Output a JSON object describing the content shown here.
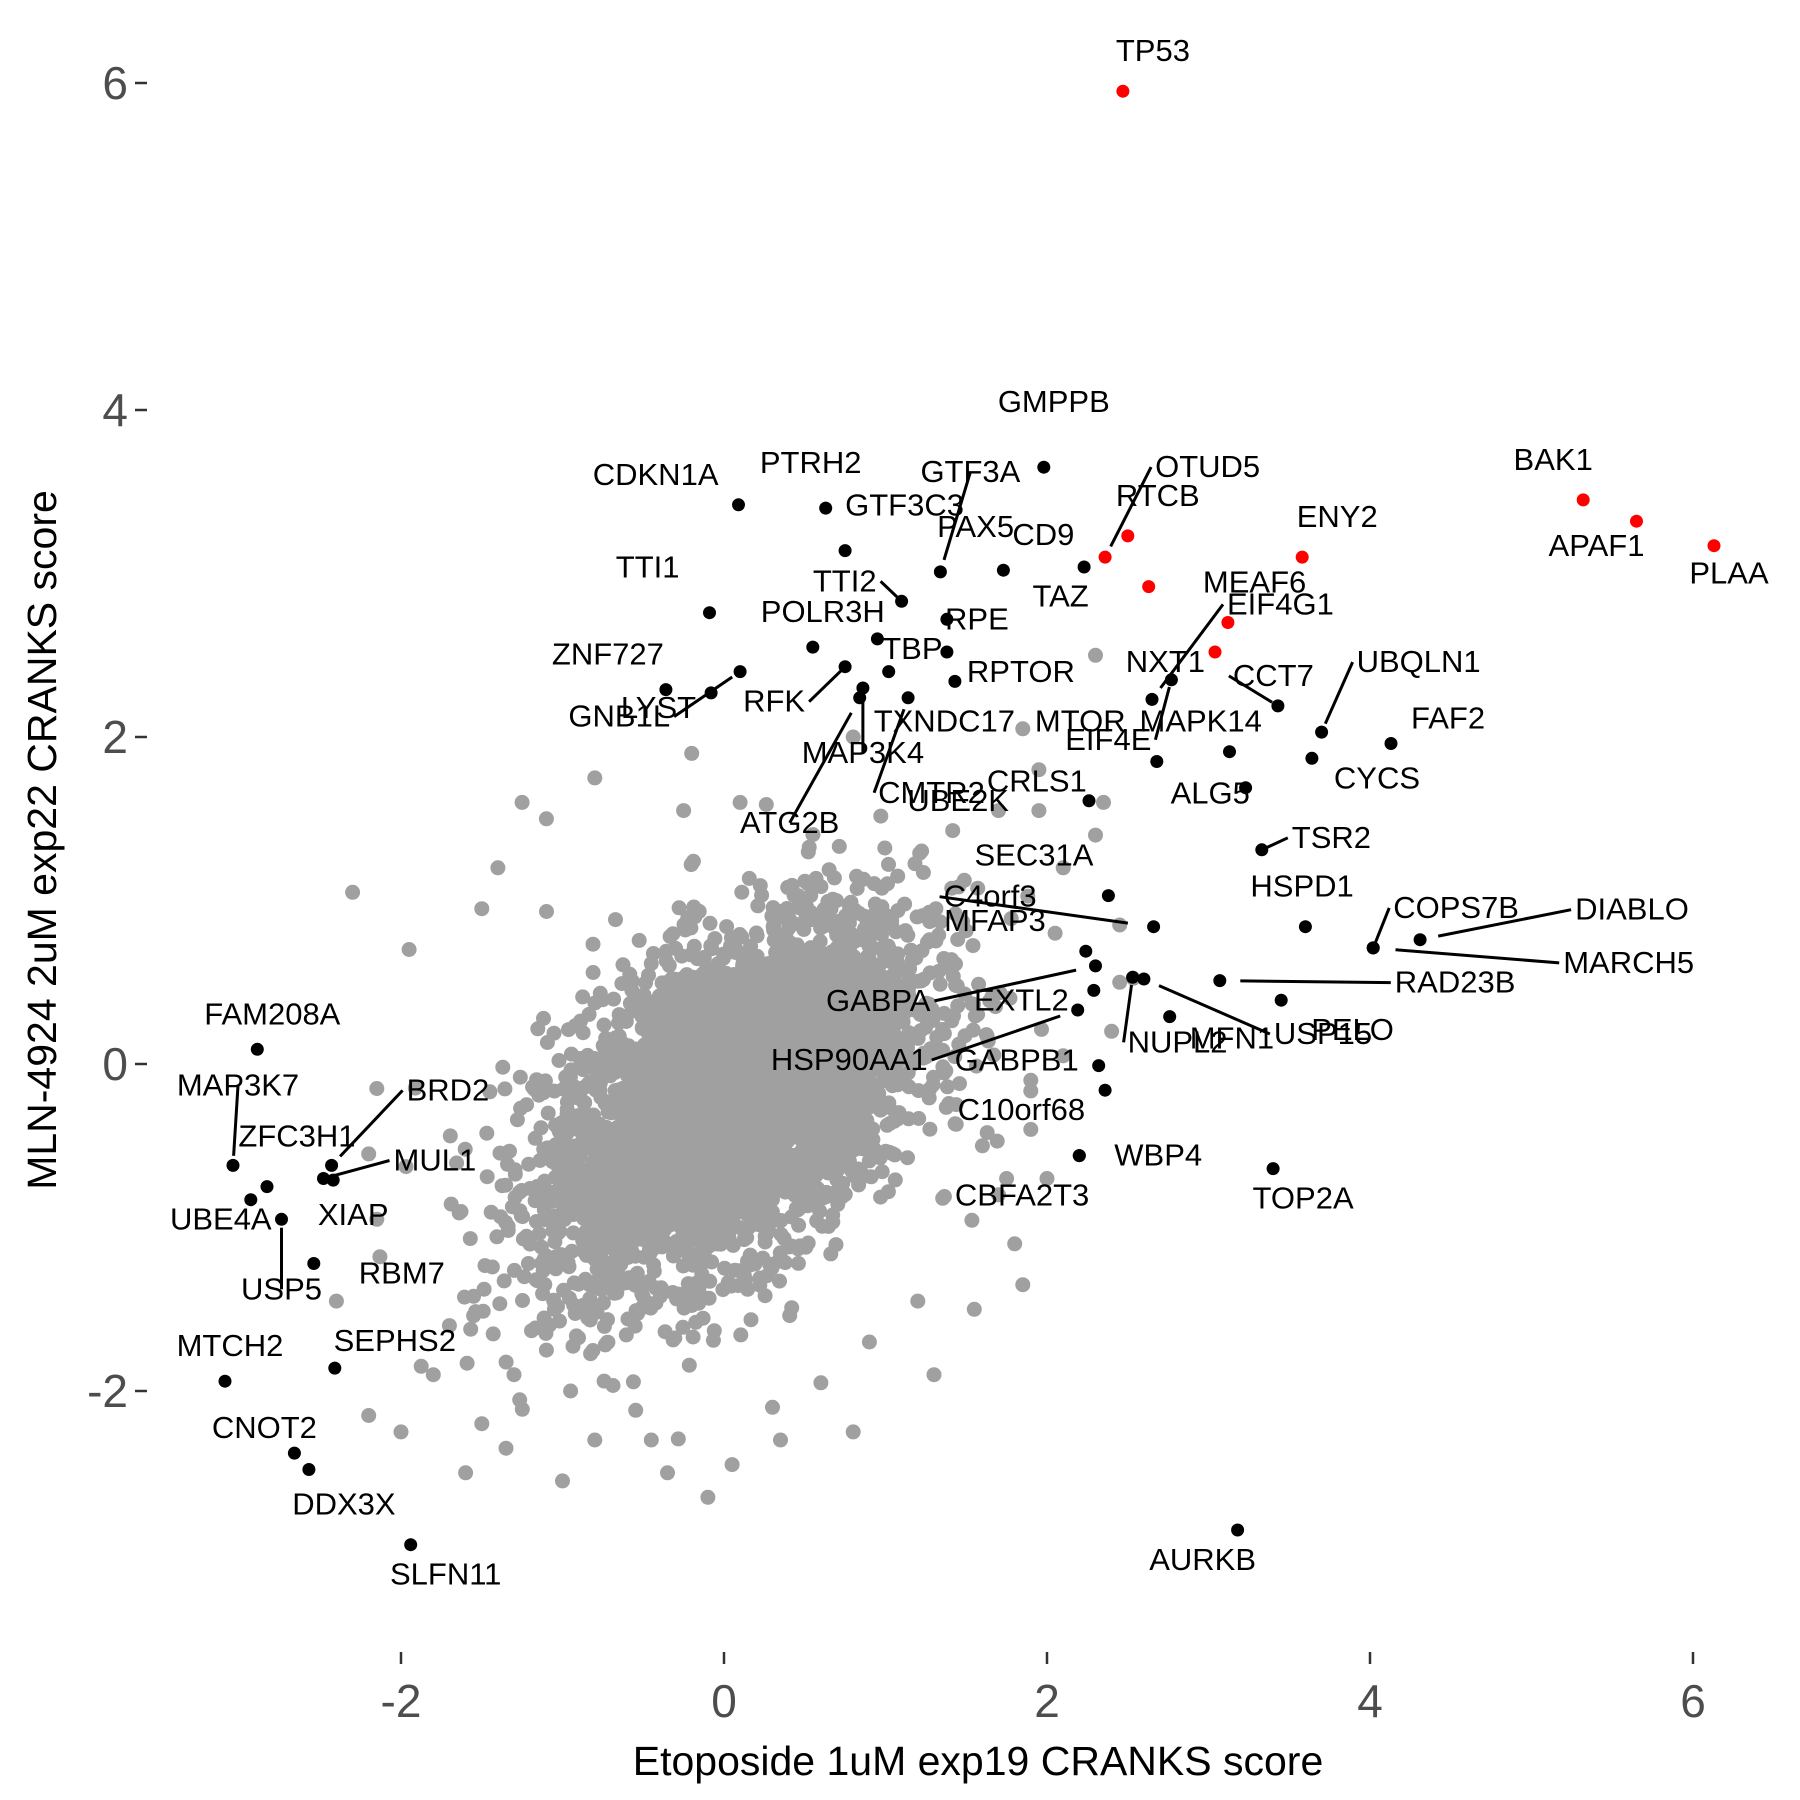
{
  "chart_data": {
    "type": "scatter",
    "xlabel": "Etoposide 1uM exp19 CRANKS score",
    "ylabel": "MLN-4924 2uM exp22 CRANKS score",
    "xlim": [
      -3.25,
      6.55
    ],
    "ylim": [
      -3.6,
      6.5
    ],
    "x_ticks": [
      -2,
      0,
      2,
      4,
      6
    ],
    "y_ticks": [
      -2,
      0,
      2,
      4,
      6
    ],
    "x_tick_labels": [
      "-2",
      "0",
      "2",
      "4",
      "6"
    ],
    "y_tick_labels": [
      "-2",
      "0",
      "2",
      "4",
      "6"
    ],
    "grid": false,
    "colors": {
      "background": "#ffffff",
      "cloud": "#a0a0a0",
      "highlight": "#ff0000",
      "labeled": "#000000"
    },
    "background_points": {
      "description_note": "dense cloud of unlabeled genes centered near the origin, correlation ~0.5",
      "count": 4200,
      "outliers": [
        [
          -2.3,
          1.05
        ],
        [
          -1.95,
          0.7
        ],
        [
          -1.4,
          1.2
        ],
        [
          -1.1,
          1.5
        ],
        [
          -0.8,
          1.75
        ],
        [
          -1.7,
          -1.6
        ],
        [
          -1.5,
          -2.2
        ],
        [
          -1.0,
          -2.55
        ],
        [
          -0.1,
          -2.65
        ],
        [
          0.05,
          -2.45
        ],
        [
          -0.45,
          -2.3
        ],
        [
          0.8,
          -2.25
        ],
        [
          0.3,
          -2.1
        ],
        [
          -0.8,
          -2.3
        ],
        [
          2.35,
          1.6
        ],
        [
          2.05,
          0.8
        ],
        [
          1.9,
          -0.4
        ],
        [
          1.7,
          -0.8
        ],
        [
          1.8,
          -1.1
        ],
        [
          1.85,
          -1.35
        ],
        [
          1.2,
          -1.45
        ],
        [
          0.9,
          -1.7
        ],
        [
          1.3,
          -1.9
        ],
        [
          1.6,
          -0.5
        ],
        [
          1.7,
          1.55
        ],
        [
          1.85,
          2.05
        ],
        [
          2.3,
          2.5
        ],
        [
          1.9,
          -0.1
        ],
        [
          -2.2,
          -2.15
        ],
        [
          -2.0,
          -2.25
        ],
        [
          -1.6,
          -2.5
        ],
        [
          -2.4,
          -1.45
        ],
        [
          -2.2,
          -0.55
        ],
        [
          -2.15,
          -0.15
        ],
        [
          -2.15,
          -0.95
        ],
        [
          -1.3,
          -1.9
        ],
        [
          -1.8,
          -1.9
        ],
        [
          -1.05,
          -1.5
        ],
        [
          -1.25,
          1.6
        ],
        [
          -1.5,
          0.95
        ],
        [
          2.45,
          0.85
        ],
        [
          2.4,
          0.2
        ],
        [
          2.45,
          0.5
        ],
        [
          1.75,
          -0.7
        ],
        [
          2.1,
          0.05
        ],
        [
          1.95,
          1.8
        ],
        [
          -0.2,
          1.9
        ],
        [
          -0.25,
          1.55
        ],
        [
          0.1,
          1.6
        ],
        [
          0.8,
          2.0
        ],
        [
          -0.35,
          -2.5
        ],
        [
          0.35,
          -2.3
        ],
        [
          1.95,
          1.55
        ],
        [
          2.0,
          -0.7
        ],
        [
          1.55,
          -1.5
        ],
        [
          2.1,
          1.2
        ],
        [
          2.3,
          1.4
        ],
        [
          -0.95,
          -2.0
        ],
        [
          -1.1,
          -1.75
        ],
        [
          -1.35,
          -2.35
        ],
        [
          0.6,
          -1.95
        ]
      ]
    },
    "labeled_points": [
      {
        "name": "TP53",
        "x": 2.47,
        "y": 5.95,
        "color": "red"
      },
      {
        "name": "BAK1",
        "x": 5.32,
        "y": 3.45,
        "color": "red"
      },
      {
        "name": "APAF1",
        "x": 5.65,
        "y": 3.32,
        "color": "red"
      },
      {
        "name": "PLAA",
        "x": 6.13,
        "y": 3.17,
        "color": "red"
      },
      {
        "name": "ENY2",
        "x": 3.58,
        "y": 3.1,
        "color": "red"
      },
      {
        "name": "RTCB",
        "x": 2.5,
        "y": 3.23,
        "color": "red"
      },
      {
        "name": "OTUD5",
        "x": 2.36,
        "y": 3.1,
        "color": "red"
      },
      {
        "name": "TAZ",
        "x": 2.63,
        "y": 2.92,
        "color": "red"
      },
      {
        "name": "MEAF6",
        "x": 3.12,
        "y": 2.7,
        "color": "red"
      },
      {
        "name": "NXT1",
        "x": 3.04,
        "y": 2.52,
        "color": "red"
      },
      {
        "name": "GMPPB",
        "x": 1.98,
        "y": 3.65,
        "color": "black"
      },
      {
        "name": "CDKN1A",
        "x": 0.09,
        "y": 3.42,
        "color": "black"
      },
      {
        "name": "PTRH2",
        "x": 0.63,
        "y": 3.4,
        "color": "black"
      },
      {
        "name": "GTF3C3",
        "x": 0.75,
        "y": 3.14,
        "color": "black"
      },
      {
        "name": "GTF3A",
        "x": 1.34,
        "y": 3.01,
        "color": "black"
      },
      {
        "name": "CD9",
        "x": 1.73,
        "y": 3.02,
        "color": "black"
      },
      {
        "name": "PAX5",
        "x": 2.23,
        "y": 3.04,
        "color": "black"
      },
      {
        "name": "TTI2",
        "x": 1.1,
        "y": 2.83,
        "color": "black"
      },
      {
        "name": "RPE",
        "x": 1.38,
        "y": 2.72,
        "color": "black"
      },
      {
        "name": "TTI1",
        "x": -0.09,
        "y": 2.76,
        "color": "black"
      },
      {
        "name": "POLR3H",
        "x": 0.55,
        "y": 2.55,
        "color": "black"
      },
      {
        "name": "TBP",
        "x": 0.95,
        "y": 2.6,
        "color": "black"
      },
      {
        "name": "RPTOR",
        "x": 1.38,
        "y": 2.52,
        "color": "black"
      },
      {
        "name": "ZNF727",
        "x": -0.36,
        "y": 2.29,
        "color": "black"
      },
      {
        "name": "LYST",
        "x": -0.08,
        "y": 2.27,
        "color": "black"
      },
      {
        "name": "GNB1L",
        "x": 0.1,
        "y": 2.4,
        "color": "black"
      },
      {
        "name": "RFK",
        "x": 0.75,
        "y": 2.43,
        "color": "black"
      },
      {
        "name": "MAP3K4",
        "x": 0.86,
        "y": 2.3,
        "color": "black"
      },
      {
        "name": "TXNDC17",
        "x": 1.02,
        "y": 2.4,
        "color": "black"
      },
      {
        "name": "CMTR2",
        "x": 1.14,
        "y": 2.24,
        "color": "black"
      },
      {
        "name": "ATG2B",
        "x": 0.84,
        "y": 2.24,
        "color": "black"
      },
      {
        "name": "MTOR",
        "x": 1.43,
        "y": 2.34,
        "color": "black"
      },
      {
        "name": "EIF4E",
        "x": 2.77,
        "y": 2.35,
        "color": "black"
      },
      {
        "name": "CCT7",
        "x": 3.43,
        "y": 2.19,
        "color": "black"
      },
      {
        "name": "EIF4G1",
        "x": 2.65,
        "y": 2.23,
        "color": "black"
      },
      {
        "name": "MAPK14",
        "x": 3.13,
        "y": 1.91,
        "color": "black"
      },
      {
        "name": "UBQLN1",
        "x": 3.7,
        "y": 2.03,
        "color": "black"
      },
      {
        "name": "FAF2",
        "x": 4.13,
        "y": 1.96,
        "color": "black"
      },
      {
        "name": "CYCS",
        "x": 3.64,
        "y": 1.87,
        "color": "black"
      },
      {
        "name": "CRLS1",
        "x": 2.68,
        "y": 1.85,
        "color": "black"
      },
      {
        "name": "ALG5",
        "x": 3.23,
        "y": 1.69,
        "color": "black"
      },
      {
        "name": "TSR2",
        "x": 3.33,
        "y": 1.31,
        "color": "black"
      },
      {
        "name": "UBE2K",
        "x": 2.26,
        "y": 1.61,
        "color": "black"
      },
      {
        "name": "HSPD1",
        "x": 3.6,
        "y": 0.84,
        "color": "black"
      },
      {
        "name": "COPS7B",
        "x": 4.02,
        "y": 0.71,
        "color": "black"
      },
      {
        "name": "DIABLO",
        "x": 4.31,
        "y": 0.76,
        "color": "black"
      },
      {
        "name": "MARCH5",
        "x": 4.02,
        "y": 0.71,
        "color": "black"
      },
      {
        "name": "RAD23B",
        "x": 3.07,
        "y": 0.51,
        "color": "black"
      },
      {
        "name": "PELO",
        "x": 3.45,
        "y": 0.39,
        "color": "black"
      },
      {
        "name": "C4orf3",
        "x": 2.66,
        "y": 0.84,
        "color": "black"
      },
      {
        "name": "SEC31A",
        "x": 2.38,
        "y": 1.03,
        "color": "black"
      },
      {
        "name": "MFAP3",
        "x": 2.24,
        "y": 0.69,
        "color": "black"
      },
      {
        "name": "GABPA",
        "x": 2.3,
        "y": 0.6,
        "color": "black"
      },
      {
        "name": "EXTL2",
        "x": 2.29,
        "y": 0.45,
        "color": "black"
      },
      {
        "name": "HSP90AA1",
        "x": 2.19,
        "y": 0.33,
        "color": "black"
      },
      {
        "name": "MFN1",
        "x": 2.76,
        "y": 0.29,
        "color": "black"
      },
      {
        "name": "NUPL2",
        "x": 2.53,
        "y": 0.53,
        "color": "black"
      },
      {
        "name": "USP15",
        "x": 2.6,
        "y": 0.52,
        "color": "black"
      },
      {
        "name": "GABPB1",
        "x": 2.32,
        "y": -0.01,
        "color": "black"
      },
      {
        "name": "C10orf68",
        "x": 2.36,
        "y": -0.16,
        "color": "black"
      },
      {
        "name": "WBP4",
        "x": 2.2,
        "y": -0.56,
        "color": "black"
      },
      {
        "name": "CBFA2T3",
        "x": 2.2,
        "y": -0.56,
        "color": "black"
      },
      {
        "name": "TOP2A",
        "x": 3.4,
        "y": -0.64,
        "color": "black"
      },
      {
        "name": "AURKB",
        "x": 3.18,
        "y": -2.85,
        "color": "black"
      },
      {
        "name": "FAM208A",
        "x": -2.89,
        "y": 0.09,
        "color": "black"
      },
      {
        "name": "MAP3K7",
        "x": -3.04,
        "y": -0.62,
        "color": "black"
      },
      {
        "name": "ZFC3H1",
        "x": -2.83,
        "y": -0.75,
        "color": "black"
      },
      {
        "name": "BRD2",
        "x": -2.43,
        "y": -0.62,
        "color": "black"
      },
      {
        "name": "MUL1",
        "x": -2.48,
        "y": -0.7,
        "color": "black"
      },
      {
        "name": "XIAP",
        "x": -2.42,
        "y": -0.71,
        "color": "black"
      },
      {
        "name": "UBE4A",
        "x": -2.93,
        "y": -0.83,
        "color": "black"
      },
      {
        "name": "USP5",
        "x": -2.74,
        "y": -0.95,
        "color": "black"
      },
      {
        "name": "RBM7",
        "x": -2.54,
        "y": -1.22,
        "color": "black"
      },
      {
        "name": "MTCH2",
        "x": -3.09,
        "y": -1.94,
        "color": "black"
      },
      {
        "name": "SEPHS2",
        "x": -2.41,
        "y": -1.86,
        "color": "black"
      },
      {
        "name": "CNOT2",
        "x": -2.66,
        "y": -2.38,
        "color": "black"
      },
      {
        "name": "DDX3X",
        "x": -2.57,
        "y": -2.48,
        "color": "black"
      },
      {
        "name": "SLFN11",
        "x": -1.94,
        "y": -2.94,
        "color": "black"
      }
    ]
  }
}
